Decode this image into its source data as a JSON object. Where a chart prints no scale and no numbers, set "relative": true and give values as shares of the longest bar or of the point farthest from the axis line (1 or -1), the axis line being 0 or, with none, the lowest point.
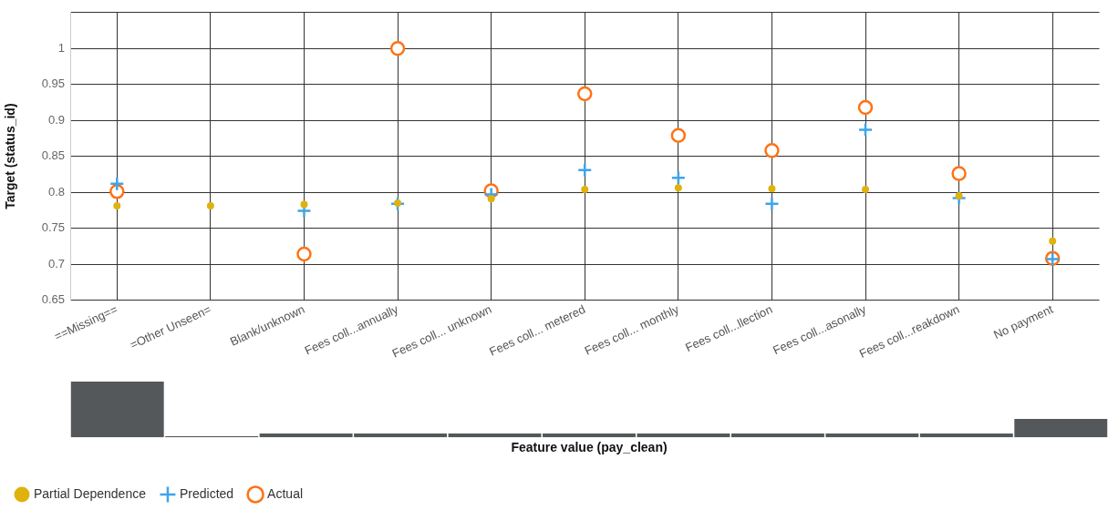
{
  "chart_data": [
    {
      "type": "scatter",
      "ylabel": "Target (status_id)",
      "categories": [
        "==Missing==",
        "=Other Unseen=",
        "Blank/unknown",
        "Fees coll...annually",
        "Fees coll... unknown",
        "Fees coll... metered",
        "Fees coll... monthly",
        "Fees coll...llection",
        "Fees coll...asonally",
        "Fees coll...reakdown",
        "No payment"
      ],
      "series": [
        {
          "name": "Partial Dependence",
          "color": "#e0b20e",
          "marker": "circle",
          "values": [
            0.781,
            0.781,
            0.783,
            0.785,
            0.791,
            0.804,
            0.806,
            0.805,
            0.804,
            0.795,
            0.732
          ]
        },
        {
          "name": "Predicted",
          "color": "#3fa4e8",
          "marker": "cross",
          "values": [
            0.812,
            null,
            0.774,
            0.784,
            0.797,
            0.831,
            0.82,
            0.784,
            0.887,
            0.792,
            0.707
          ]
        },
        {
          "name": "Actual",
          "color": "#ff7214",
          "marker": "circle",
          "values": [
            0.801,
            null,
            0.714,
            1.0,
            0.802,
            0.937,
            0.879,
            0.858,
            0.918,
            0.826,
            0.708
          ]
        }
      ],
      "ylim": [
        0.65,
        1.05
      ],
      "yticks": [
        0.65,
        0.7,
        0.75,
        0.8,
        0.85,
        0.9,
        0.95,
        1,
        {
          "value": 1.05,
          "label": null
        }
      ],
      "grid": true,
      "legend": "bottom left"
    },
    {
      "type": "bar",
      "xlabel": "Feature value (pay_clean)",
      "relative": true,
      "tick_labels": false,
      "categories": [
        null,
        null,
        null,
        null,
        null,
        null,
        null,
        null,
        null,
        null,
        null
      ],
      "color": "#54585a",
      "values": [
        1,
        0.02,
        0.07,
        0.07,
        0.07,
        0.07,
        0.07,
        0.07,
        0.07,
        0.07,
        0.33
      ]
    }
  ]
}
